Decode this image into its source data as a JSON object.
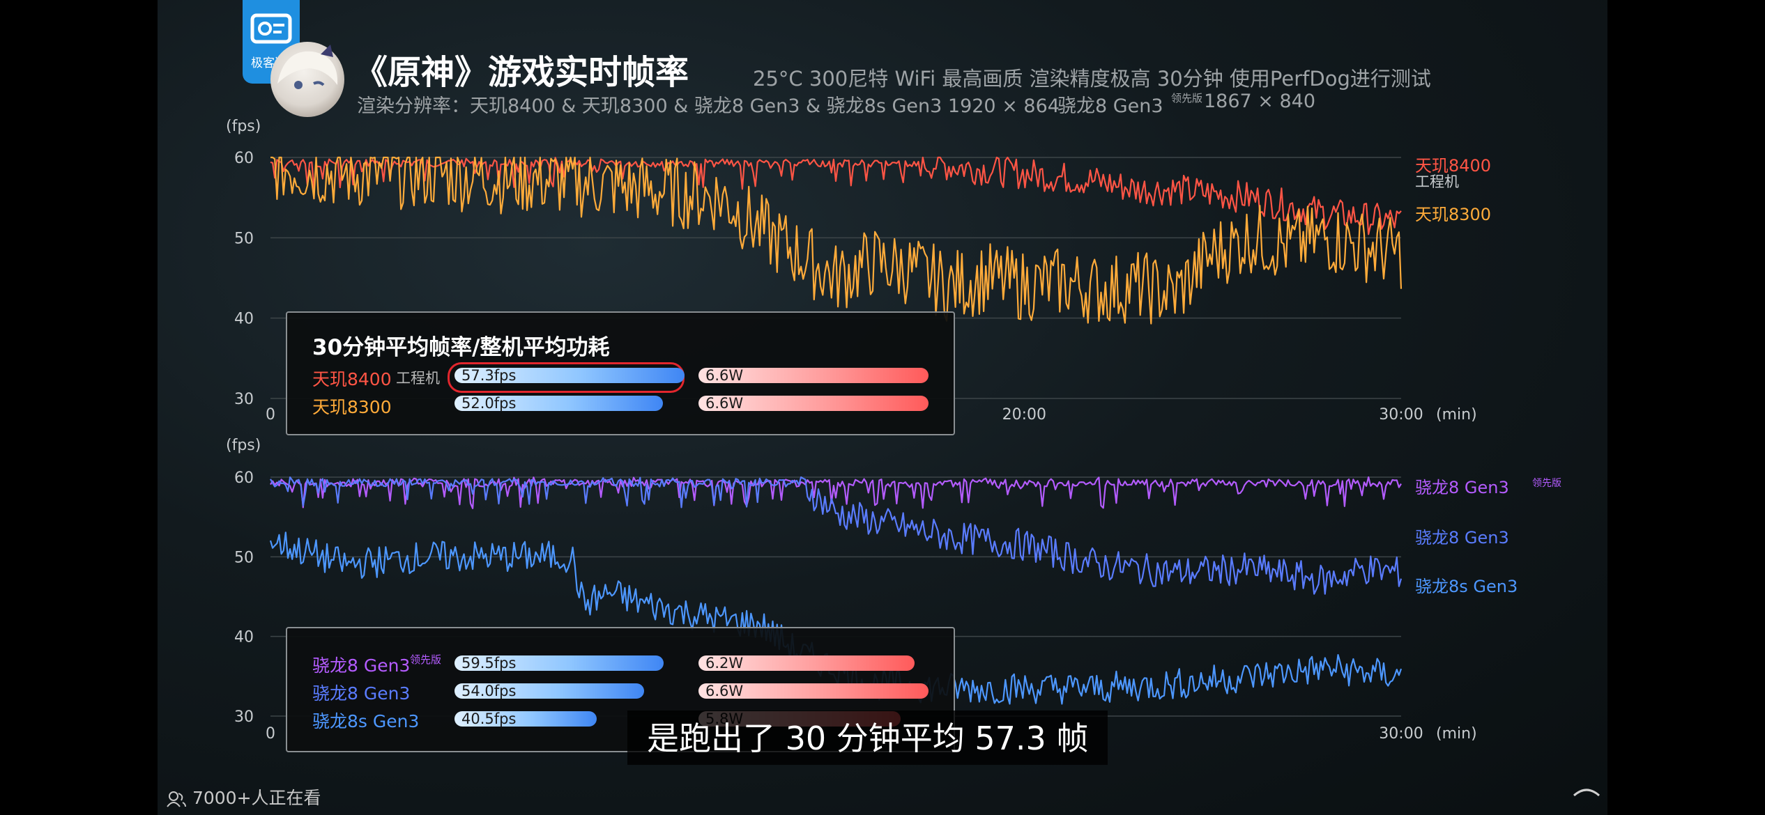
{
  "logo": {
    "text": "极客湾"
  },
  "header": {
    "title": "《原神》游戏实时帧率",
    "conditions": "25°C 300尼特 WiFi 最高画质 渲染精度极高 30分钟 使用PerfDog进行测试",
    "resolution_line": "渲染分辨率：天玑8400 & 天玑8300 & 骁龙8 Gen3 & 骁龙8s Gen3 1920 × 864",
    "resolution_extra_name": "骁龙8 Gen3",
    "resolution_extra_badge": "领先版",
    "resolution_extra_value": "1867 × 840"
  },
  "chart_data": [
    {
      "type": "line",
      "ylabel": "(fps)",
      "xlabel": "(min)",
      "ylim": [
        30,
        60
      ],
      "yticks": [
        "60",
        "50",
        "40",
        "30"
      ],
      "xticks": [
        "0",
        "20:00",
        "30:00"
      ],
      "xlim": [
        0,
        30
      ],
      "grid": true,
      "legend": [
        {
          "name": "天玑8400",
          "sub": "工程机",
          "color": "#ff5545"
        },
        {
          "name": "天玑8300",
          "sub": "",
          "color": "#ffab3a"
        }
      ],
      "series": [
        {
          "name": "天玑8400",
          "color": "#ff5545",
          "x": [
            0,
            2,
            4,
            6,
            8,
            10,
            12,
            14,
            16,
            17,
            18,
            19,
            20,
            21,
            22,
            23,
            24,
            25,
            26,
            27,
            28,
            29,
            30
          ],
          "y": [
            60,
            60,
            60,
            60,
            60,
            60,
            60,
            60,
            60,
            59.5,
            59,
            58.5,
            58,
            57.5,
            57,
            56,
            56,
            55.5,
            55,
            54,
            53,
            52.5,
            52
          ]
        },
        {
          "name": "天玑8300",
          "color": "#ffab3a",
          "x": [
            0,
            2,
            4,
            6,
            8,
            10,
            12,
            13,
            14,
            15,
            16,
            17,
            18,
            19,
            20,
            21,
            22,
            23,
            24,
            25,
            26,
            27,
            28,
            29,
            30
          ],
          "y": [
            59,
            58,
            58,
            57.5,
            57,
            56,
            55,
            51,
            48,
            45,
            47,
            46,
            44,
            45,
            44,
            44.5,
            43.5,
            44,
            43,
            48,
            50,
            49,
            50,
            49,
            48
          ]
        }
      ],
      "summary": {
        "title": "30分钟平均帧率/整机平均功耗",
        "rows": [
          {
            "name": "天玑8400",
            "sub": "工程机",
            "fps": 57.3,
            "fps_label": "57.3fps",
            "power": 6.6,
            "power_label": "6.6W",
            "highlight": true
          },
          {
            "name": "天玑8300",
            "sub": "",
            "fps": 52.0,
            "fps_label": "52.0fps",
            "power": 6.6,
            "power_label": "6.6W",
            "highlight": false
          }
        ]
      }
    },
    {
      "type": "line",
      "ylabel": "(fps)",
      "xlabel": "(min)",
      "ylim": [
        30,
        60
      ],
      "yticks": [
        "60",
        "50",
        "40",
        "30"
      ],
      "xticks": [
        "0",
        "30:00"
      ],
      "xlim": [
        0,
        30
      ],
      "grid": true,
      "legend": [
        {
          "name": "骁龙8 Gen3",
          "badge": "领先版",
          "color": "#b45cff"
        },
        {
          "name": "骁龙8 Gen3",
          "badge": "",
          "color": "#5a7cff"
        },
        {
          "name": "骁龙8s Gen3",
          "badge": "",
          "color": "#4d97ff"
        }
      ],
      "series": [
        {
          "name": "骁龙8 Gen3 领先版",
          "color": "#b45cff",
          "x": [
            0,
            5,
            10,
            15,
            20,
            25,
            30
          ],
          "y": [
            59.5,
            59.5,
            59.5,
            59.5,
            59.5,
            59.5,
            59.5
          ]
        },
        {
          "name": "骁龙8 Gen3",
          "color": "#5a7cff",
          "x": [
            0,
            14,
            15,
            16,
            17,
            18,
            20,
            22,
            24,
            26,
            28,
            29,
            30
          ],
          "y": [
            59.5,
            59.5,
            55.5,
            54.5,
            53.5,
            52.5,
            51.5,
            49,
            48,
            48.5,
            47,
            48.5,
            48
          ]
        },
        {
          "name": "骁龙8s Gen3",
          "color": "#4d97ff",
          "x": [
            0,
            2,
            4,
            6,
            8,
            8.3,
            9,
            10,
            11,
            12,
            13,
            14,
            16,
            18,
            20,
            22,
            24,
            26,
            28,
            30
          ],
          "y": [
            52,
            49,
            50,
            50,
            50,
            44,
            45.5,
            44,
            43,
            42,
            41.5,
            38,
            34,
            33.5,
            33.5,
            33.5,
            34,
            35,
            36,
            35
          ]
        }
      ],
      "summary": {
        "rows": [
          {
            "name": "骁龙8 Gen3",
            "badge": "领先版",
            "color": "#b45cff",
            "fps": 59.5,
            "fps_label": "59.5fps",
            "power": 6.2,
            "power_label": "6.2W"
          },
          {
            "name": "骁龙8 Gen3",
            "badge": "",
            "color": "#5a7cff",
            "fps": 54.0,
            "fps_label": "54.0fps",
            "power": 6.6,
            "power_label": "6.6W"
          },
          {
            "name": "骁龙8s Gen3",
            "badge": "",
            "color": "#4d97ff",
            "fps": 40.5,
            "fps_label": "40.5fps",
            "power": 5.8,
            "power_label": "5.8W"
          }
        ]
      }
    }
  ],
  "caption": "是跑出了 30 分钟平均 57.3 帧",
  "viewers": "7000+人正在看"
}
